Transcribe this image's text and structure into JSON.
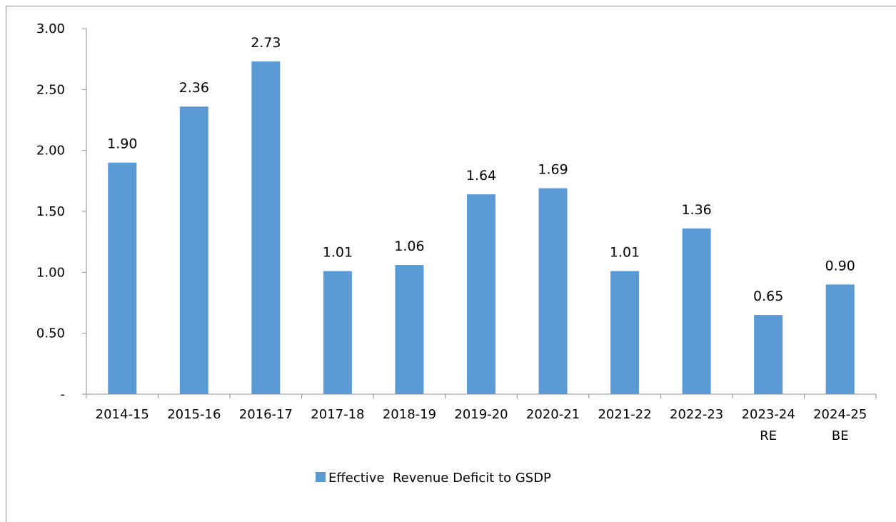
{
  "chart_data": {
    "type": "bar",
    "categories": [
      "2014-15",
      "2015-16",
      "2016-17",
      "2017-18",
      "2018-19",
      "2019-20",
      "2020-21",
      "2021-22",
      "2022-23",
      "2023-24\nRE",
      "2024-25\nBE"
    ],
    "series": [
      {
        "name": "Effective  Revenue Deficit to GSDP",
        "values": [
          1.9,
          2.36,
          2.73,
          1.01,
          1.06,
          1.64,
          1.69,
          1.01,
          1.36,
          0.65,
          0.9
        ],
        "labels": [
          "1.90",
          "2.36",
          "2.73",
          "1.01",
          "1.06",
          "1.64",
          "1.69",
          "1.01",
          "1.36",
          "0.65",
          "0.90"
        ],
        "color": "#5B9BD5"
      }
    ],
    "yticks": [
      0,
      0.5,
      1.0,
      1.5,
      2.0,
      2.5,
      3.0
    ],
    "ytick_labels": [
      "-",
      "0.50",
      "1.00",
      "1.50",
      "2.00",
      "2.50",
      "3.00"
    ],
    "ylim": [
      0,
      3.0
    ],
    "grid": false,
    "legend_position": "bottom",
    "axis_color": "#8c8c8c"
  }
}
